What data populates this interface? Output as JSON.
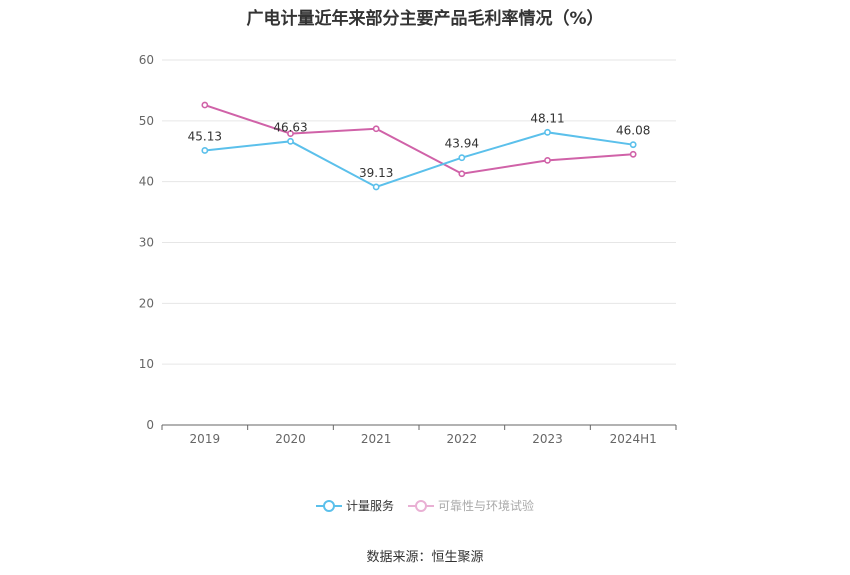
{
  "chart_data": {
    "type": "line",
    "title": "广电计量近年来部分主要产品毛利率情况（%）",
    "categories": [
      "2019",
      "2020",
      "2021",
      "2022",
      "2023",
      "2024H1"
    ],
    "series": [
      {
        "name": "计量服务",
        "color": "#5bc0eb",
        "values": [
          45.13,
          46.63,
          39.13,
          43.94,
          48.11,
          46.08
        ],
        "labels": [
          "45.13",
          "46.63",
          "39.13",
          "43.94",
          "48.11",
          "46.08"
        ]
      },
      {
        "name": "可靠性与环境试验",
        "color": "#d062a8",
        "values": [
          52.6,
          47.9,
          48.7,
          41.3,
          43.5,
          44.5
        ]
      }
    ],
    "ylim": [
      0,
      60
    ],
    "yticks": [
      "0",
      "10",
      "20",
      "30",
      "40",
      "50",
      "60"
    ],
    "grid": true,
    "legend_position": "bottom"
  },
  "source": "数据来源：恒生聚源"
}
